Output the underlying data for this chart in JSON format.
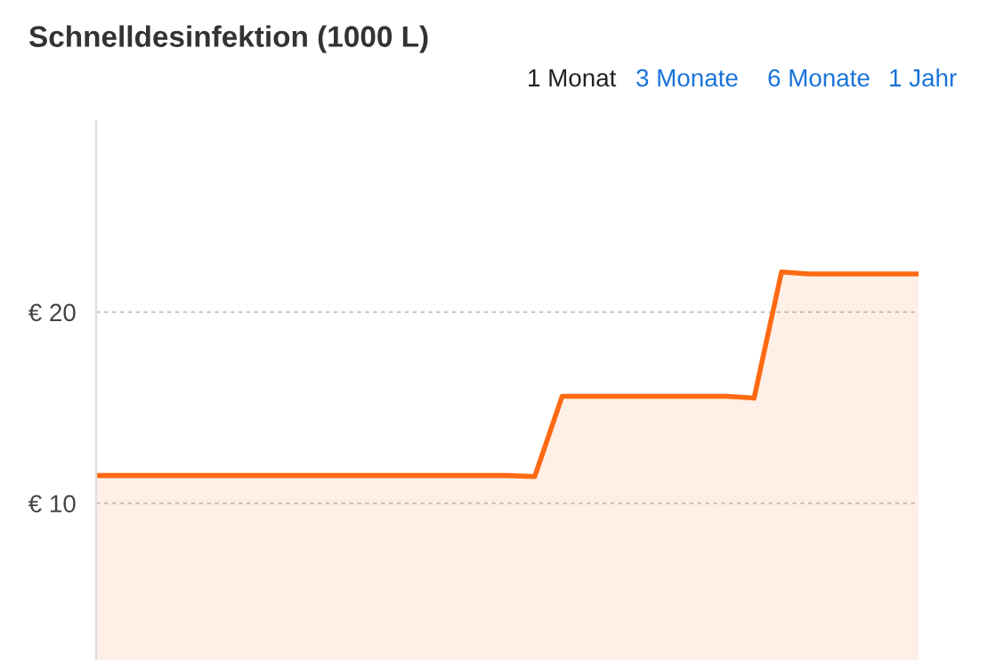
{
  "chart_data": {
    "type": "area",
    "title": "Schnelldesinfektion (1000 L)",
    "annotations": [
      "1 Monat",
      "3 Monate",
      "6 Monate",
      "1 Jahr"
    ],
    "categories": [
      null,
      null,
      null,
      null,
      null,
      null,
      null,
      null,
      null,
      null,
      null,
      null,
      null,
      null,
      null,
      null,
      null,
      null,
      null,
      null,
      null,
      null,
      null,
      null,
      null,
      null,
      null,
      null,
      null,
      null,
      null
    ],
    "series": [
      {
        "color": "#ff6a13",
        "values": [
          11.45,
          11.45,
          11.45,
          11.45,
          11.45,
          11.45,
          11.45,
          11.45,
          11.45,
          11.45,
          11.45,
          11.45,
          11.45,
          11.45,
          11.45,
          11.45,
          11.4,
          15.6,
          15.6,
          15.6,
          15.6,
          15.6,
          15.6,
          15.6,
          15.5,
          22.1,
          22.0,
          22.0,
          22.0,
          22.0,
          22.0
        ]
      }
    ],
    "ylim": [
      1.8,
      30
    ],
    "yticks": [
      {
        "value": 10,
        "label": "€ 10"
      },
      {
        "value": 20,
        "label": "€ 20"
      }
    ],
    "tick_labels": "y",
    "grid": "y"
  }
}
